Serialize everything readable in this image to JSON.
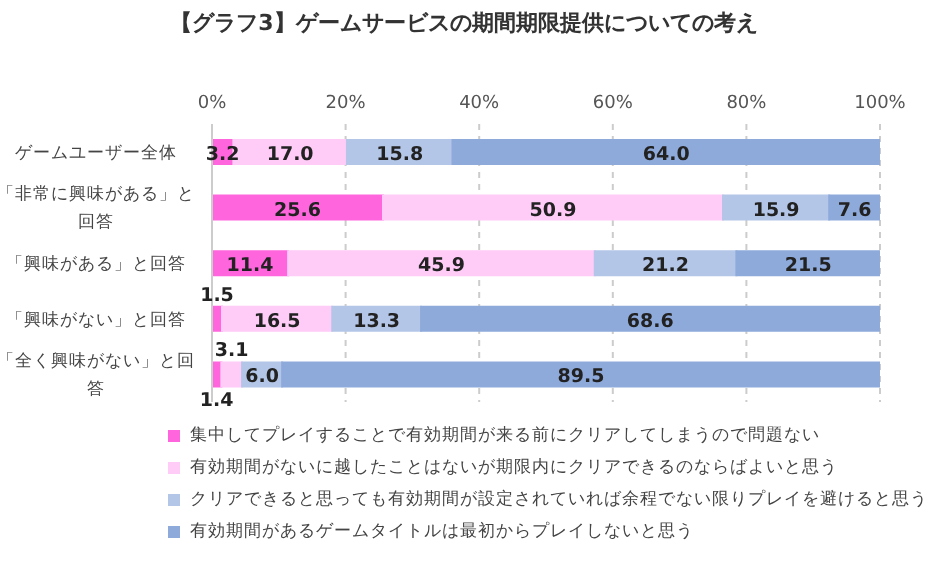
{
  "chart_data": {
    "type": "bar",
    "orientation": "horizontal",
    "stacked": true,
    "title": "【グラフ3】ゲームサービスの期間期限提供についての考え",
    "categories": [
      "ゲームユーザー全体",
      "「非常に興味がある」と回答",
      "「興味がある」と回答",
      "「興味がない」と回答",
      "「全く興味がない」と回答"
    ],
    "series": [
      {
        "name": "集中してプレイすることで有効期間が来る前にクリアしてしまうので問題ない",
        "color": "#ff66dd",
        "values": [
          3.2,
          25.6,
          11.4,
          1.5,
          1.4
        ],
        "value_labels": [
          "3.2",
          "25.6",
          "11.4",
          "1.5",
          "1.4"
        ]
      },
      {
        "name": "有効期間がないに越したことはないが期限内にクリアできるのならばよいと思う",
        "color": "#ffccf8",
        "values": [
          17.0,
          50.9,
          45.9,
          16.5,
          3.1
        ],
        "value_labels": [
          "17.0",
          "50.9",
          "45.9",
          "16.5",
          "3.1"
        ]
      },
      {
        "name": "クリアできると思っても有効期間が設定されていれば余程でない限りプレイを避けると思う",
        "color": "#b4c6e7",
        "values": [
          15.8,
          15.9,
          21.2,
          13.3,
          6.0
        ],
        "value_labels": [
          "15.8",
          "15.9",
          "21.2",
          "13.3",
          "6.0"
        ]
      },
      {
        "name": "有効期間があるゲームタイトルは最初からプレイしないと思う",
        "color": "#8eaadb",
        "values": [
          64.0,
          7.6,
          21.5,
          68.6,
          89.5
        ],
        "value_labels": [
          "64.0",
          "7.6",
          "21.5",
          "68.6",
          "89.5"
        ]
      }
    ],
    "xlim": [
      0,
      100
    ],
    "xticks": [
      {
        "value": 0,
        "label": "0%"
      },
      {
        "value": 20,
        "label": "20%"
      },
      {
        "value": 40,
        "label": "40%"
      },
      {
        "value": 60,
        "label": "60%"
      },
      {
        "value": 80,
        "label": "80%"
      },
      {
        "value": 100,
        "label": "100%"
      }
    ],
    "grid": "x",
    "legend": "bottom"
  }
}
